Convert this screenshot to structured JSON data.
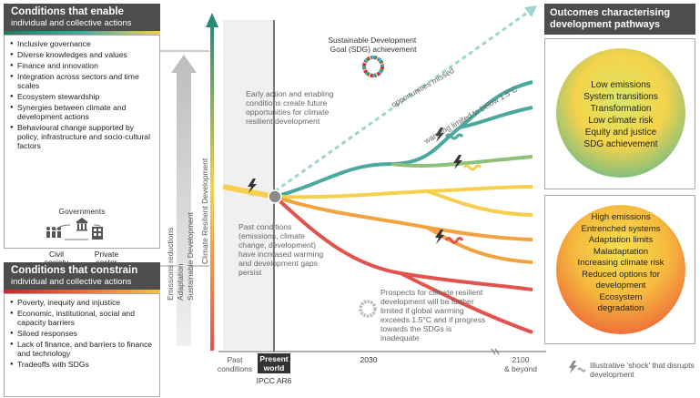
{
  "enable": {
    "title": "Conditions that enable",
    "subtitle": "individual and collective actions",
    "items": [
      "Inclusive governance",
      "Diverse knowledges and values",
      "Finance and innovation",
      "Integration across sectors and time scales",
      "Ecosystem stewardship",
      "Synergies between climate and development actions",
      "Behavioural change supported by policy, infrastructure and socio-cultural factors"
    ],
    "actors": {
      "governments": "Governments",
      "civil": "Civil society",
      "private": "Private sector"
    }
  },
  "constrain": {
    "title": "Conditions that constrain",
    "subtitle": "individual and collective actions",
    "items": [
      "Poverty, inequity and injustice",
      "Economic, institutional, social and capacity barriers",
      "Siloed responses",
      "Lack of finance, and barriers to finance and technology",
      "Tradeoffs with SDGs"
    ]
  },
  "vertical_labels": [
    "Emissions reductions",
    "Adaptation",
    "Sustainable Development",
    "Climate Resilient Development"
  ],
  "annotations": {
    "sdg": "Sustainable Development Goal (SDG) achievement",
    "opportunities": "opportunities missed",
    "warming": "warming limited to below 1.5°C",
    "early_action": "Early action and enabling conditions create future opportunities for climate resilient development",
    "past": "Past conditions (emissions, climate change, development) have increased warming and development gaps persist",
    "prospects": "Prospects for climate resilient development will be further limited if global warming exceeds 1.5°C and if progress towards the SDGs is inadequate"
  },
  "axis": {
    "past": "Past conditions",
    "present": "Present world",
    "ipcc": "IPCC AR6",
    "y2030": "2030",
    "y2100": "2100 & beyond"
  },
  "outcomes": {
    "title": "Outcomes characterising development pathways",
    "good": [
      "Low emissions",
      "System transitions",
      "Transformation",
      "Low climate risk",
      "Equity and justice",
      "SDG achievement"
    ],
    "bad": [
      "High emissions",
      "Entrenched systems",
      "Adaptation limits",
      "Maladaptation",
      "Increasing climate risk",
      "Reduced options for development",
      "Ecosystem degradation"
    ]
  },
  "legend": {
    "shock": "Illustrative 'shock' that disrupts development"
  },
  "colors": {
    "green": "#4aa89f",
    "yellow": "#f6d04d",
    "orange": "#f2a23e",
    "red": "#e3534d",
    "header": "#4d4d4d"
  }
}
